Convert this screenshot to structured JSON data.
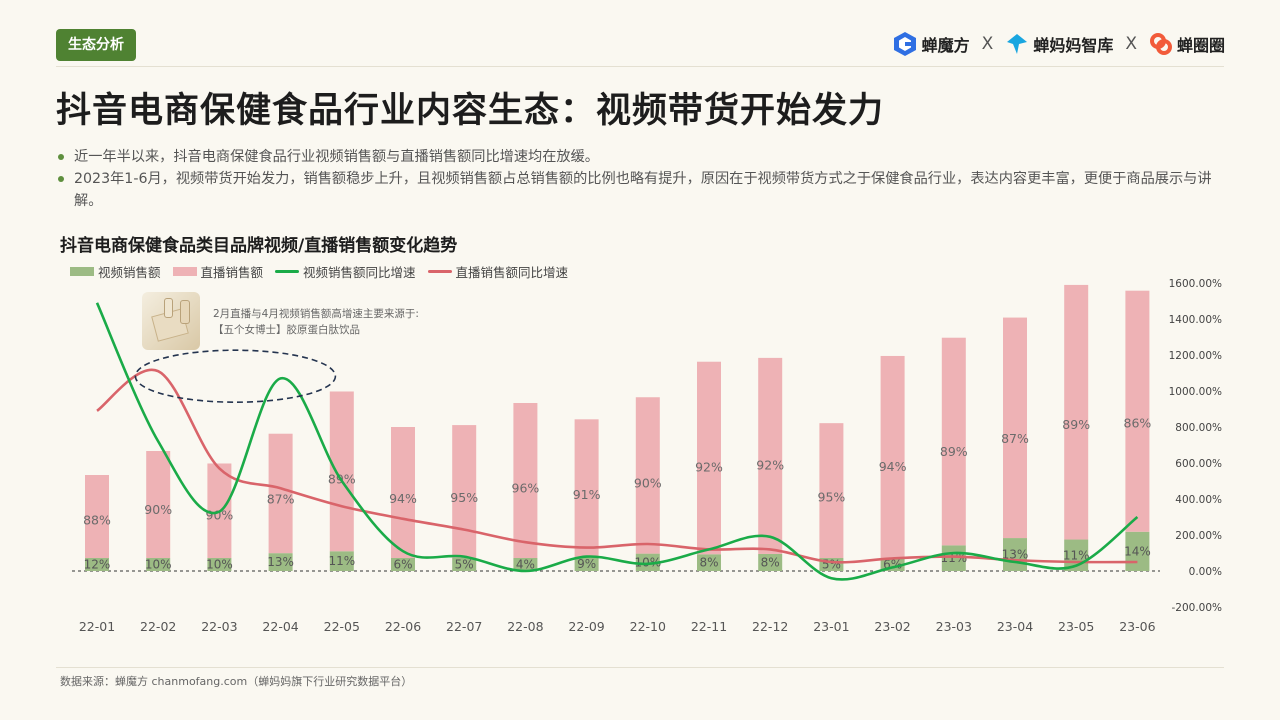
{
  "header": {
    "tag": "生态分析",
    "logos": [
      "蝉魔方",
      "蝉妈妈智库",
      "蝉圈圈"
    ],
    "separator": "X",
    "title": "抖音电商保健食品行业内容生态：视频带货开始发力"
  },
  "bullets": [
    "近一年半以来，抖音电商保健食品行业视频销售额与直播销售额同比增速均在放缓。",
    "2023年1-6月，视频带货开始发力，销售额稳步上升，且视频销售额占总销售额的比例也略有提升，原因在于视频带货方式之于保健食品行业，表达内容更丰富，更便于商品展示与讲解。"
  ],
  "annotation": {
    "line1": "2月直播与4月视频销售额高增速主要来源于:",
    "line2": "【五个女博士】胶原蛋白肽饮品"
  },
  "source": "数据来源：蝉魔方 chanmofang.com（蝉妈妈旗下行业研究数据平台）",
  "colors": {
    "tag_bg": "#4f8232",
    "video_bar": "#9cbb84",
    "live_bar": "#eeb2b5",
    "video_line": "#1aab48",
    "live_line": "#d9646a"
  },
  "chart_data": {
    "type": "bar",
    "title": "抖音电商保健食品类目品牌视频/直播销售额变化趋势",
    "categories": [
      "22-01",
      "22-02",
      "22-03",
      "22-04",
      "22-05",
      "22-06",
      "22-07",
      "22-08",
      "22-09",
      "22-10",
      "22-11",
      "22-12",
      "23-01",
      "23-02",
      "23-03",
      "23-04",
      "23-05",
      "23-06"
    ],
    "stacked_bar_height_pct": [
      100,
      125,
      112,
      143,
      187,
      150,
      152,
      175,
      158,
      181,
      218,
      222,
      154,
      224,
      243,
      264,
      298,
      292
    ],
    "series": [
      {
        "name": "视频销售额",
        "kind": "bar",
        "share_labels": [
          "12%",
          "10%",
          "10%",
          "13%",
          "11%",
          "6%",
          "5%",
          "4%",
          "9%",
          "10%",
          "8%",
          "8%",
          "5%",
          "6%",
          "11%",
          "13%",
          "11%",
          "14%"
        ],
        "share_values": [
          12,
          10,
          10,
          13,
          11,
          6,
          5,
          4,
          9,
          10,
          8,
          8,
          5,
          6,
          11,
          13,
          11,
          14
        ]
      },
      {
        "name": "直播销售额",
        "kind": "bar",
        "share_labels": [
          "88%",
          "90%",
          "90%",
          "87%",
          "89%",
          "94%",
          "95%",
          "96%",
          "91%",
          "90%",
          "92%",
          "92%",
          "95%",
          "94%",
          "89%",
          "87%",
          "89%",
          "86%"
        ],
        "share_values": [
          88,
          90,
          90,
          87,
          89,
          94,
          95,
          96,
          91,
          90,
          92,
          92,
          95,
          94,
          89,
          87,
          89,
          86
        ]
      },
      {
        "name": "视频销售额同比增速",
        "kind": "line",
        "axis": "right",
        "values": [
          1490,
          720,
          330,
          1070,
          500,
          110,
          80,
          0,
          80,
          40,
          120,
          190,
          -40,
          20,
          100,
          50,
          30,
          300
        ]
      },
      {
        "name": "直播销售额同比增速",
        "kind": "line",
        "axis": "right",
        "values": [
          890,
          1110,
          570,
          460,
          360,
          290,
          230,
          160,
          130,
          150,
          120,
          120,
          50,
          70,
          80,
          60,
          50,
          50
        ]
      }
    ],
    "y_right": {
      "ticks": [
        "1600.00%",
        "1400.00%",
        "1200.00%",
        "1000.00%",
        "800.00%",
        "600.00%",
        "400.00%",
        "200.00%",
        "0.00%",
        "-200.00%"
      ],
      "range": [
        -200,
        1600
      ]
    },
    "legend_position": "top-left",
    "grid": false
  }
}
